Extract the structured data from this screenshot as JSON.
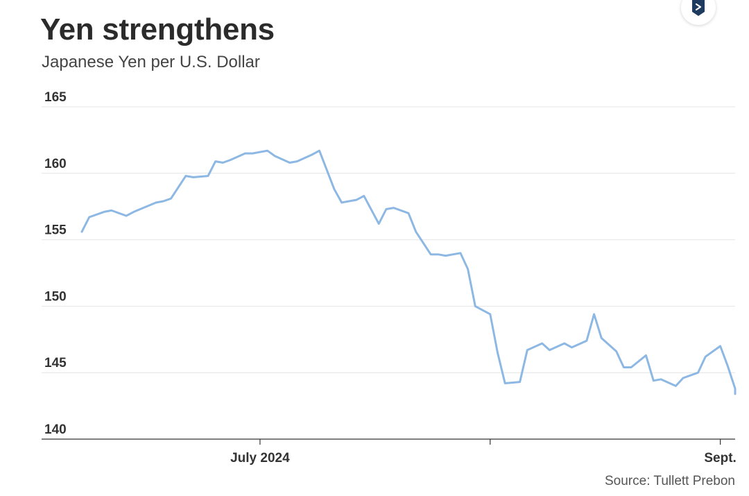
{
  "title": "Yen strengthens",
  "subtitle": "Japanese Yen per U.S. Dollar",
  "source": "Source: Tullett Prebon",
  "badge_icon": "datawrapper-logo-icon",
  "colors": {
    "line": "#8db8e3",
    "grid": "#e4e4e4",
    "axis": "#333333",
    "badge": "#1f3a5f"
  },
  "chart_data": {
    "type": "line",
    "title": "Yen strengthens",
    "subtitle": "Japanese Yen per U.S. Dollar",
    "xlabel": "",
    "ylabel": "",
    "ylim": [
      140,
      165
    ],
    "yticks": [
      140,
      145,
      150,
      155,
      160,
      165
    ],
    "xlim": [
      "2024-06-07",
      "2024-09-03"
    ],
    "xticks": [
      {
        "date": "2024-07-01",
        "label": "July 2024"
      },
      {
        "date": "2024-08-01",
        "label": ""
      },
      {
        "date": "2024-09-01",
        "label": "Sept."
      }
    ],
    "grid": true,
    "series": [
      {
        "name": "",
        "points": [
          [
            "2024-06-07",
            155.6
          ],
          [
            "2024-06-08",
            156.7
          ],
          [
            "2024-06-10",
            157.1
          ],
          [
            "2024-06-11",
            157.2
          ],
          [
            "2024-06-13",
            156.8
          ],
          [
            "2024-06-14",
            157.1
          ],
          [
            "2024-06-17",
            157.8
          ],
          [
            "2024-06-18",
            157.9
          ],
          [
            "2024-06-19",
            158.1
          ],
          [
            "2024-06-21",
            159.8
          ],
          [
            "2024-06-22",
            159.7
          ],
          [
            "2024-06-24",
            159.8
          ],
          [
            "2024-06-25",
            160.9
          ],
          [
            "2024-06-26",
            160.8
          ],
          [
            "2024-06-27",
            161.0
          ],
          [
            "2024-06-29",
            161.5
          ],
          [
            "2024-06-30",
            161.5
          ],
          [
            "2024-07-02",
            161.7
          ],
          [
            "2024-07-03",
            161.3
          ],
          [
            "2024-07-05",
            160.8
          ],
          [
            "2024-07-06",
            160.9
          ],
          [
            "2024-07-08",
            161.4
          ],
          [
            "2024-07-09",
            161.7
          ],
          [
            "2024-07-11",
            158.8
          ],
          [
            "2024-07-12",
            157.8
          ],
          [
            "2024-07-14",
            158.0
          ],
          [
            "2024-07-15",
            158.3
          ],
          [
            "2024-07-17",
            156.2
          ],
          [
            "2024-07-18",
            157.3
          ],
          [
            "2024-07-19",
            157.4
          ],
          [
            "2024-07-21",
            157.0
          ],
          [
            "2024-07-22",
            155.6
          ],
          [
            "2024-07-24",
            153.9
          ],
          [
            "2024-07-25",
            153.9
          ],
          [
            "2024-07-26",
            153.8
          ],
          [
            "2024-07-28",
            154.0
          ],
          [
            "2024-07-29",
            152.8
          ],
          [
            "2024-07-30",
            150.0
          ],
          [
            "2024-08-01",
            149.4
          ],
          [
            "2024-08-02",
            146.5
          ],
          [
            "2024-08-03",
            144.2
          ],
          [
            "2024-08-05",
            144.3
          ],
          [
            "2024-08-06",
            146.7
          ],
          [
            "2024-08-08",
            147.2
          ],
          [
            "2024-08-09",
            146.7
          ],
          [
            "2024-08-11",
            147.2
          ],
          [
            "2024-08-12",
            146.9
          ],
          [
            "2024-08-14",
            147.4
          ],
          [
            "2024-08-15",
            149.4
          ],
          [
            "2024-08-16",
            147.6
          ],
          [
            "2024-08-18",
            146.6
          ],
          [
            "2024-08-19",
            145.4
          ],
          [
            "2024-08-20",
            145.4
          ],
          [
            "2024-08-22",
            146.3
          ],
          [
            "2024-08-23",
            144.4
          ],
          [
            "2024-08-24",
            144.5
          ],
          [
            "2024-08-26",
            144.0
          ],
          [
            "2024-08-27",
            144.6
          ],
          [
            "2024-08-29",
            145.0
          ],
          [
            "2024-08-30",
            146.2
          ],
          [
            "2024-09-01",
            147.0
          ],
          [
            "2024-09-02",
            145.5
          ],
          [
            "2024-09-03",
            143.8
          ],
          [
            "2024-09-03",
            143.4
          ]
        ]
      }
    ]
  }
}
